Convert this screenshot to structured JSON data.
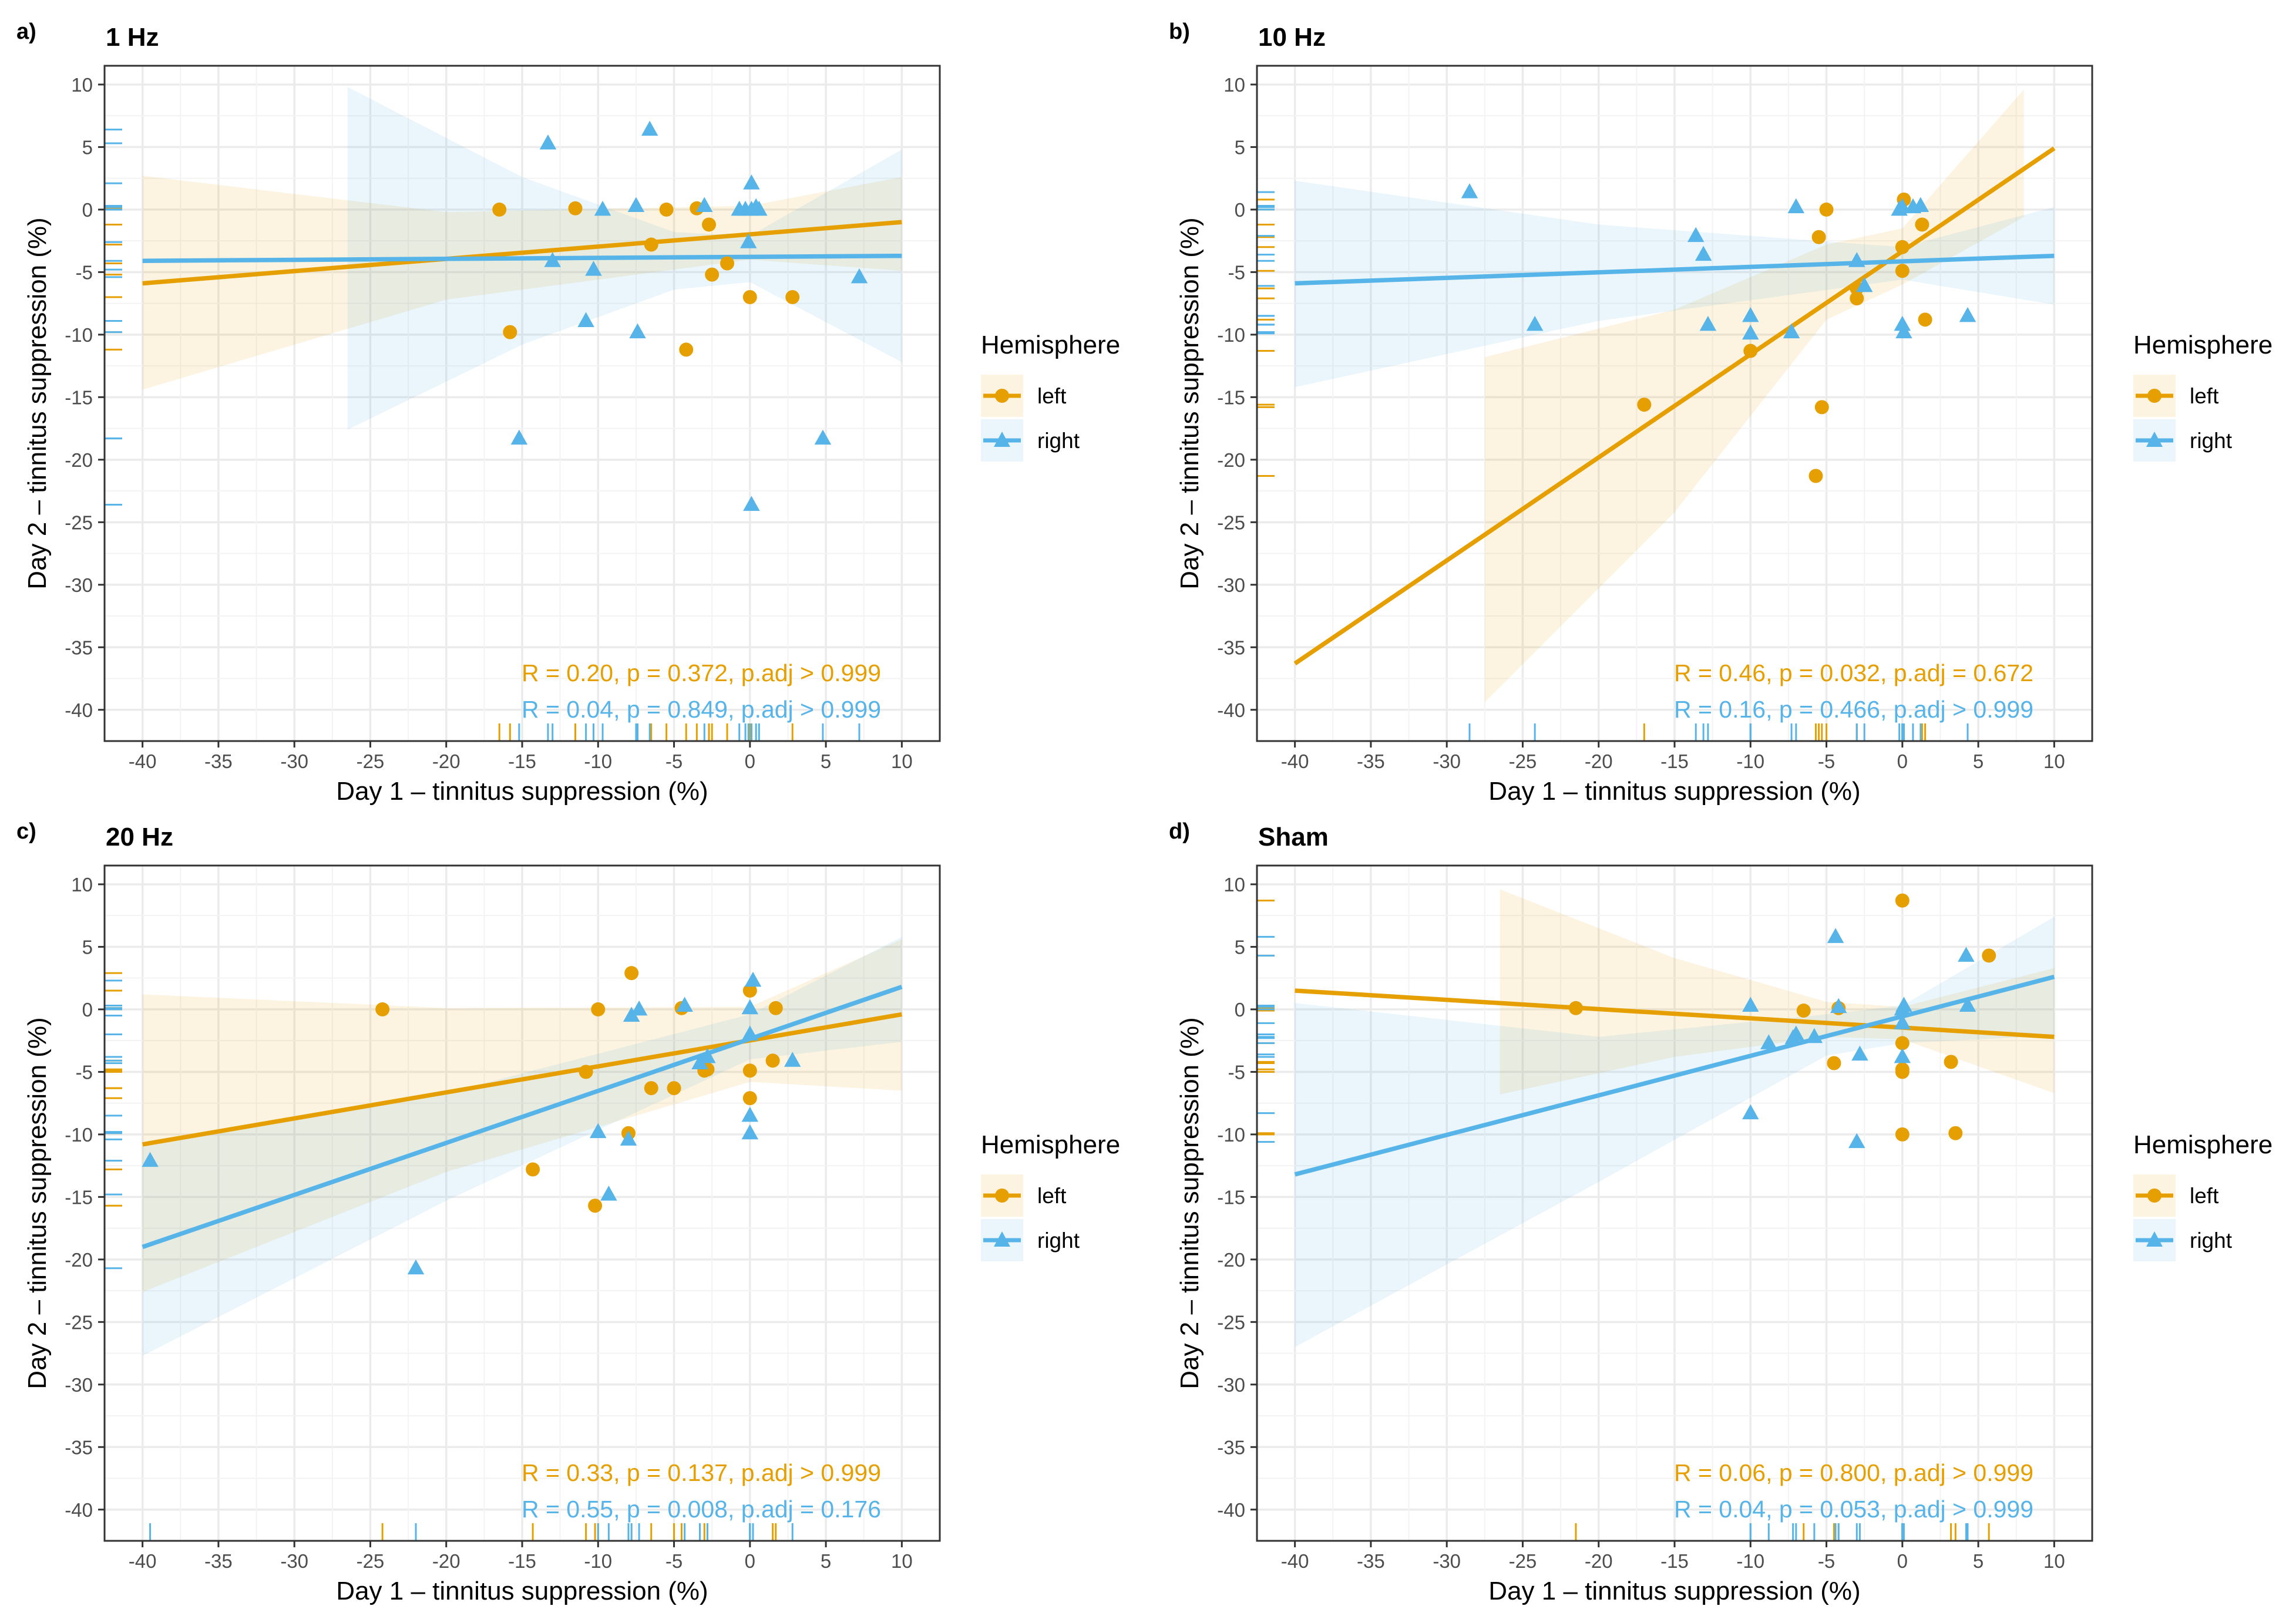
{
  "colors": {
    "left": "#E69F00",
    "right": "#56B4E9",
    "left_band": "#E69F00",
    "right_band": "#56B4E9",
    "grid": "#ebebeb",
    "border": "#333333"
  },
  "legend": {
    "title": "Hemisphere",
    "items": [
      {
        "key": "left",
        "label": "left",
        "shape": "circle-icon"
      },
      {
        "key": "right",
        "label": "right",
        "shape": "triangle-icon"
      }
    ]
  },
  "chart_data": [
    {
      "type": "scatter",
      "tag": "a)",
      "title": "1 Hz",
      "xlabel": "Day 1 – tinnitus suppression (%)",
      "ylabel": "Day 2 – tinnitus suppression (%)",
      "xlim": [
        -42.5,
        12.5
      ],
      "ylim": [
        -42.5,
        11.5
      ],
      "xticks": [
        -40,
        -35,
        -30,
        -25,
        -20,
        -15,
        -10,
        -5,
        0,
        5,
        10
      ],
      "xtick_labels": [
        "-40",
        "-35",
        "-30",
        "-25",
        "-20",
        "-15",
        "-10",
        "-5",
        "0",
        "5",
        "10"
      ],
      "yticks": [
        10,
        5,
        0,
        -5,
        -10,
        -15,
        -20,
        -25,
        -30,
        -35,
        -40
      ],
      "ytick_labels": [
        "10",
        "5",
        "0",
        "-5",
        "-10",
        "-15",
        "-20",
        "-25",
        "-30",
        "-35",
        "-40"
      ],
      "series": [
        {
          "name": "left",
          "x": [
            -16.5,
            -15.8,
            -11.5,
            -5.5,
            -6.5,
            -3.5,
            -2.7,
            -2.5,
            -1.5,
            -4.2,
            0,
            2.8
          ],
          "y": [
            0,
            -9.8,
            0.1,
            0,
            -2.8,
            0.1,
            -1.2,
            -5.2,
            -4.3,
            -11.2,
            -7,
            -7
          ],
          "fit": {
            "x": [
              -40,
              10
            ],
            "y": [
              -5.9,
              -1.0
            ]
          },
          "band": {
            "x": [
              -40,
              -20,
              0,
              10
            ],
            "upper": [
              2.7,
              -0.2,
              0.3,
              2.6
            ],
            "lower": [
              -14.4,
              -7.2,
              -4.0,
              -4.9
            ]
          }
        },
        {
          "name": "right",
          "x": [
            -13.3,
            -15.2,
            -13.0,
            -10.3,
            -9.7,
            -10.8,
            -7.5,
            -7.4,
            -6.6,
            -3.0,
            -0.7,
            -0.3,
            0.1,
            0.1,
            0.4,
            0.6,
            -0.1,
            0.1,
            4.8,
            7.2
          ],
          "y": [
            5.3,
            -18.3,
            -4.1,
            -4.8,
            0,
            -8.9,
            0.3,
            -9.8,
            6.4,
            0.3,
            0,
            0,
            2.1,
            -23.6,
            0.2,
            0,
            -2.6,
            0,
            -18.3,
            -5.4
          ],
          "fit": {
            "x": [
              -40,
              10
            ],
            "y": [
              -4.1,
              -3.7
            ]
          },
          "band": {
            "x": [
              -26.5,
              -15,
              -5,
              0,
              10
            ],
            "upper": [
              9.8,
              2.6,
              -1.8,
              -2.1,
              4.8
            ],
            "lower": [
              -17.6,
              -10.8,
              -6.4,
              -5.8,
              -12.2
            ]
          }
        }
      ],
      "annotations": [
        {
          "series": "left",
          "text": "R = 0.20, p = 0.372, p.adj > 0.999"
        },
        {
          "series": "right",
          "text": "R = 0.04, p = 0.849, p.adj > 0.999"
        }
      ]
    },
    {
      "type": "scatter",
      "tag": "b)",
      "title": "10 Hz",
      "xlabel": "Day 1 – tinnitus suppression (%)",
      "ylabel": "Day 2 – tinnitus suppression (%)",
      "xlim": [
        -42.5,
        12.5
      ],
      "ylim": [
        -42.5,
        11.5
      ],
      "xticks": [
        -40,
        -35,
        -30,
        -25,
        -20,
        -15,
        -10,
        -5,
        0,
        5,
        10
      ],
      "xtick_labels": [
        "-40",
        "-35",
        "-30",
        "-25",
        "-20",
        "-15",
        "-10",
        "-5",
        "0",
        "5",
        "10"
      ],
      "yticks": [
        10,
        5,
        0,
        -5,
        -10,
        -15,
        -20,
        -25,
        -30,
        -35,
        -40
      ],
      "ytick_labels": [
        "10",
        "5",
        "0",
        "-5",
        "-10",
        "-15",
        "-20",
        "-25",
        "-30",
        "-35",
        "-40"
      ],
      "series": [
        {
          "name": "left",
          "x": [
            -17.0,
            -10.0,
            -5.5,
            -5.3,
            -5.7,
            -5.0,
            -3.0,
            -3.0,
            0,
            0,
            0.1,
            1.3,
            1.5
          ],
          "y": [
            -15.6,
            -11.3,
            -2.2,
            -15.8,
            -21.3,
            0,
            -6.3,
            -7.1,
            -4.9,
            -3.0,
            0.8,
            -1.2,
            -8.8
          ],
          "fit": {
            "x": [
              -40,
              10
            ],
            "y": [
              -36.3,
              4.9
            ]
          },
          "band": {
            "x": [
              -27.5,
              -15,
              -5,
              0,
              8
            ],
            "upper": [
              -11.8,
              -8.0,
              -2.8,
              -1.5,
              9.6
            ],
            "lower": [
              -39.4,
              -24.2,
              -8.8,
              -6.0,
              -0.6
            ]
          }
        },
        {
          "name": "right",
          "x": [
            -28.5,
            -24.2,
            -13.6,
            -13.1,
            -12.8,
            -10.0,
            -10.0,
            -7.3,
            -7.0,
            -2.5,
            -3.0,
            -0.2,
            0,
            0,
            0.1,
            0.7,
            1.2,
            4.3
          ],
          "y": [
            1.4,
            -9.2,
            -2.1,
            -3.6,
            -9.2,
            -8.5,
            -9.9,
            -9.8,
            0.2,
            -6.1,
            -4.1,
            0,
            0.2,
            -9.2,
            -9.8,
            0.2,
            0.3,
            -8.5
          ],
          "fit": {
            "x": [
              -40,
              10
            ],
            "y": [
              -5.9,
              -3.7
            ]
          },
          "band": {
            "x": [
              -40,
              -20,
              0,
              10
            ],
            "upper": [
              2.3,
              -1.2,
              -3.0,
              0.2
            ],
            "lower": [
              -14.2,
              -8.9,
              -5.6,
              -7.6
            ]
          }
        }
      ],
      "annotations": [
        {
          "series": "left",
          "text": "R = 0.46, p = 0.032, p.adj = 0.672"
        },
        {
          "series": "right",
          "text": "R = 0.16, p = 0.466, p.adj > 0.999"
        }
      ]
    },
    {
      "type": "scatter",
      "tag": "c)",
      "title": "20 Hz",
      "xlabel": "Day 1 – tinnitus suppression (%)",
      "ylabel": "Day 2 – tinnitus suppression (%)",
      "xlim": [
        -42.5,
        12.5
      ],
      "ylim": [
        -42.5,
        11.5
      ],
      "xticks": [
        -40,
        -35,
        -30,
        -25,
        -20,
        -15,
        -10,
        -5,
        0,
        5,
        10
      ],
      "xtick_labels": [
        "-40",
        "-35",
        "-30",
        "-25",
        "-20",
        "-15",
        "-10",
        "-5",
        "0",
        "5",
        "10"
      ],
      "yticks": [
        10,
        5,
        0,
        -5,
        -10,
        -15,
        -20,
        -25,
        -30,
        -35,
        -40
      ],
      "ytick_labels": [
        "10",
        "5",
        "0",
        "-5",
        "-10",
        "-15",
        "-20",
        "-25",
        "-30",
        "-35",
        "-40"
      ],
      "series": [
        {
          "name": "left",
          "x": [
            -24.2,
            -14.3,
            -10.8,
            -10.2,
            -10.0,
            -7.8,
            -8.0,
            -6.5,
            -5.0,
            -4.5,
            -3.0,
            -2.8,
            0,
            0,
            0,
            1.5,
            1.7
          ],
          "y": [
            0,
            -12.8,
            -5.0,
            -15.7,
            0,
            2.9,
            -9.9,
            -6.3,
            -6.3,
            0.1,
            -4.9,
            -4.8,
            -7.1,
            -4.9,
            1.5,
            -4.1,
            0.1
          ],
          "fit": {
            "x": [
              -40,
              10
            ],
            "y": [
              -10.8,
              -0.4
            ]
          },
          "band": {
            "x": [
              -40,
              -20,
              0,
              10
            ],
            "upper": [
              1.2,
              0.1,
              0.2,
              5.6
            ],
            "lower": [
              -22.6,
              -13.0,
              -5.8,
              -6.5
            ]
          }
        },
        {
          "name": "right",
          "x": [
            -39.5,
            -22.0,
            -10.0,
            -9.3,
            -8.0,
            -7.8,
            -7.3,
            -4.3,
            -3.3,
            -2.8,
            0,
            0,
            0,
            0,
            0.2,
            2.8
          ],
          "y": [
            -12.1,
            -20.7,
            -9.8,
            -14.8,
            -10.4,
            -0.5,
            0,
            0.3,
            -4.3,
            -3.8,
            -2.0,
            0.1,
            -8.5,
            -9.9,
            2.3,
            -4.1
          ],
          "fit": {
            "x": [
              -40,
              10
            ],
            "y": [
              -19.0,
              1.8
            ]
          },
          "band": {
            "x": [
              -40,
              -20,
              0,
              10
            ],
            "upper": [
              -11.0,
              -6.7,
              -0.4,
              5.8
            ],
            "lower": [
              -27.7,
              -15.3,
              -4.0,
              -2.6
            ]
          }
        }
      ],
      "annotations": [
        {
          "series": "left",
          "text": "R = 0.33, p = 0.137, p.adj > 0.999"
        },
        {
          "series": "right",
          "text": "R = 0.55, p = 0.008, p.adj = 0.176"
        }
      ]
    },
    {
      "type": "scatter",
      "tag": "d)",
      "title": "Sham",
      "xlabel": "Day 1 – tinnitus suppression (%)",
      "ylabel": "Day 2 – tinnitus suppression (%)",
      "xlim": [
        -42.5,
        12.5
      ],
      "ylim": [
        -42.5,
        11.5
      ],
      "xticks": [
        -40,
        -35,
        -30,
        -25,
        -20,
        -15,
        -10,
        -5,
        0,
        5,
        10
      ],
      "xtick_labels": [
        "-40",
        "-35",
        "-30",
        "-25",
        "-20",
        "-15",
        "-10",
        "-5",
        "0",
        "5",
        "10"
      ],
      "yticks": [
        10,
        5,
        0,
        -5,
        -10,
        -15,
        -20,
        -25,
        -30,
        -35,
        -40
      ],
      "ytick_labels": [
        "10",
        "5",
        "0",
        "-5",
        "-10",
        "-15",
        "-20",
        "-25",
        "-30",
        "-35",
        "-40"
      ],
      "series": [
        {
          "name": "left",
          "x": [
            -21.5,
            -6.5,
            -4.5,
            -4.2,
            0,
            0,
            0,
            0,
            0,
            3.2,
            3.5,
            5.7
          ],
          "y": [
            0.1,
            -0.1,
            -4.3,
            0.1,
            8.7,
            -2.7,
            -4.8,
            -5.0,
            -10.0,
            -4.2,
            -9.9,
            4.3
          ],
          "fit": {
            "x": [
              -40,
              10
            ],
            "y": [
              1.5,
              -2.2
            ]
          },
          "band": {
            "x": [
              -26.5,
              -15,
              -5,
              0,
              10
            ],
            "upper": [
              9.6,
              4.1,
              0.6,
              0.2,
              3.3
            ],
            "lower": [
              -6.8,
              -3.8,
              -2.2,
              -2.4,
              -6.7
            ]
          }
        },
        {
          "name": "right",
          "x": [
            -10.0,
            -10.0,
            -8.8,
            -7.2,
            -7.0,
            -5.8,
            -4.2,
            -4.4,
            -3.0,
            -2.8,
            0,
            0,
            0,
            0.1,
            4.2,
            4.3
          ],
          "y": [
            -8.3,
            0.3,
            -2.7,
            -2.3,
            -2.0,
            -2.2,
            0.2,
            5.8,
            -10.6,
            -3.6,
            -3.8,
            -1.1,
            0,
            0.3,
            4.3,
            0.3
          ],
          "fit": {
            "x": [
              -40,
              10
            ],
            "y": [
              -13.2,
              2.6
            ]
          },
          "band": {
            "x": [
              -40,
              -20,
              -5,
              0,
              10
            ],
            "upper": [
              0.5,
              -2.2,
              -0.4,
              0.3,
              7.4
            ],
            "lower": [
              -27.0,
              -13.8,
              -3.7,
              -2.7,
              -2.1
            ]
          }
        }
      ],
      "annotations": [
        {
          "series": "left",
          "text": "R = 0.06, p = 0.800, p.adj > 0.999"
        },
        {
          "series": "right",
          "text": "R = 0.04, p = 0.053, p.adj > 0.999"
        }
      ]
    }
  ]
}
